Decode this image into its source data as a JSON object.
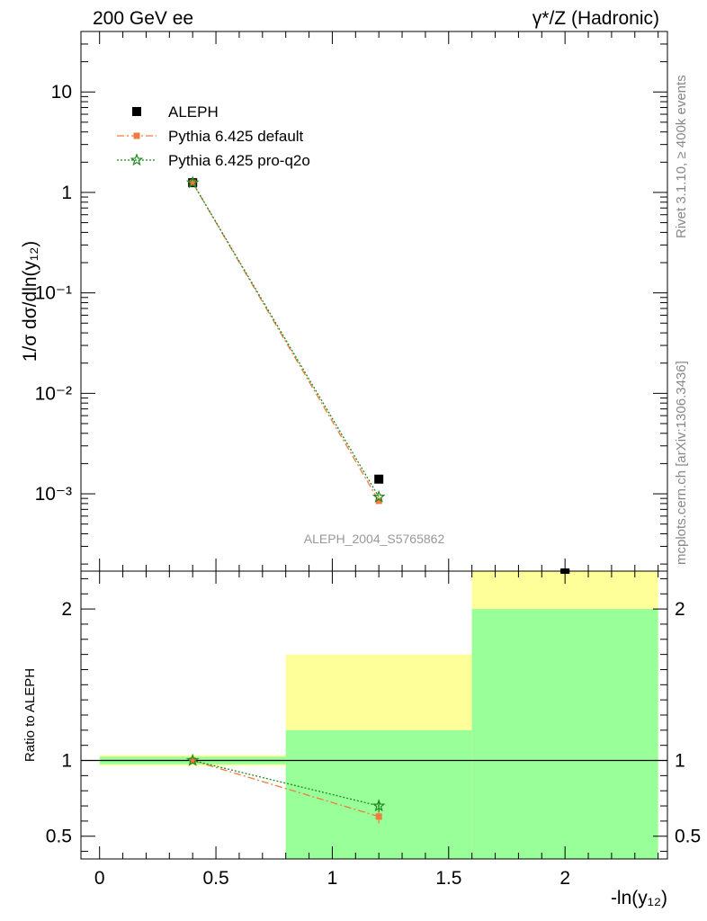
{
  "header": {
    "left_label": "200 GeV ee",
    "right_label": "γ*/Z (Hadronic)"
  },
  "side_labels": {
    "rivet": "Rivet 3.1.10, ≥ 400k events",
    "mcplots": "mcplots.cern.ch [arXiv:1306.3436]"
  },
  "watermark": "ALEPH_2004_S5765862",
  "colors": {
    "aleph": "#000000",
    "pythia_default": "#f07b3c",
    "pythia_proq2o": "#1f8a1f",
    "band_inner": "#99ff99",
    "band_outer": "#ffff99"
  },
  "legend": {
    "entries": [
      {
        "label": "ALEPH"
      },
      {
        "label": "Pythia 6.425 default"
      },
      {
        "label": "Pythia 6.425 pro-q2o"
      }
    ]
  },
  "chart_data": [
    {
      "type": "scatter",
      "panel": "main",
      "ylabel": "1/σ  dσ/dln(y₁₂)",
      "yscale": "log",
      "xlim": [
        -0.08,
        2.44
      ],
      "ylim": [
        0.00017,
        40
      ],
      "yticks": [
        {
          "value": 0.001,
          "label": "10⁻³"
        },
        {
          "value": 0.01,
          "label": "10⁻²"
        },
        {
          "value": 0.1,
          "label": "10⁻¹"
        },
        {
          "value": 1,
          "label": "1"
        },
        {
          "value": 10,
          "label": "10"
        }
      ],
      "series": [
        {
          "name": "ALEPH",
          "x": [
            0.4,
            1.2,
            2.0
          ],
          "y": [
            1.25,
            0.0014,
            0.00016
          ]
        },
        {
          "name": "Pythia 6.425 default",
          "x": [
            0.4,
            1.2
          ],
          "y": [
            1.25,
            0.00085
          ]
        },
        {
          "name": "Pythia 6.425 pro-q2o",
          "x": [
            0.4,
            1.2
          ],
          "y": [
            1.25,
            0.00093
          ]
        }
      ]
    },
    {
      "type": "scatter",
      "panel": "ratio",
      "ylabel": "Ratio to ALEPH",
      "xlabel": "-ln(y₁₂)",
      "xlim": [
        -0.08,
        2.44
      ],
      "ylim": [
        0.35,
        2.25
      ],
      "xticks": [
        {
          "value": 0,
          "label": "0"
        },
        {
          "value": 0.5,
          "label": "0.5"
        },
        {
          "value": 1,
          "label": "1"
        },
        {
          "value": 1.5,
          "label": "1.5"
        },
        {
          "value": 2,
          "label": "2"
        }
      ],
      "yticks": [
        {
          "value": 0.5,
          "label": "0.5"
        },
        {
          "value": 1,
          "label": "1"
        },
        {
          "value": 2,
          "label": "2"
        }
      ],
      "bands": [
        {
          "x0": 0.0,
          "x1": 0.8,
          "inner": [
            0.975,
            1.025
          ],
          "outer": [
            0.965,
            1.035
          ]
        },
        {
          "x0": 0.8,
          "x1": 1.6,
          "inner": [
            0.35,
            1.2
          ],
          "outer": [
            0.35,
            1.7
          ]
        },
        {
          "x0": 1.6,
          "x1": 2.4,
          "inner": [
            0.35,
            2.0
          ],
          "outer": [
            0.35,
            2.25
          ]
        }
      ],
      "series": [
        {
          "name": "Pythia 6.425 default",
          "x": [
            0.4,
            1.2
          ],
          "y": [
            1.0,
            0.63
          ],
          "yerr": [
            0.0,
            0.045
          ]
        },
        {
          "name": "Pythia 6.425 pro-q2o",
          "x": [
            0.4,
            1.2
          ],
          "y": [
            1.0,
            0.7
          ],
          "yerr": [
            0.0,
            0.04
          ]
        }
      ]
    }
  ]
}
